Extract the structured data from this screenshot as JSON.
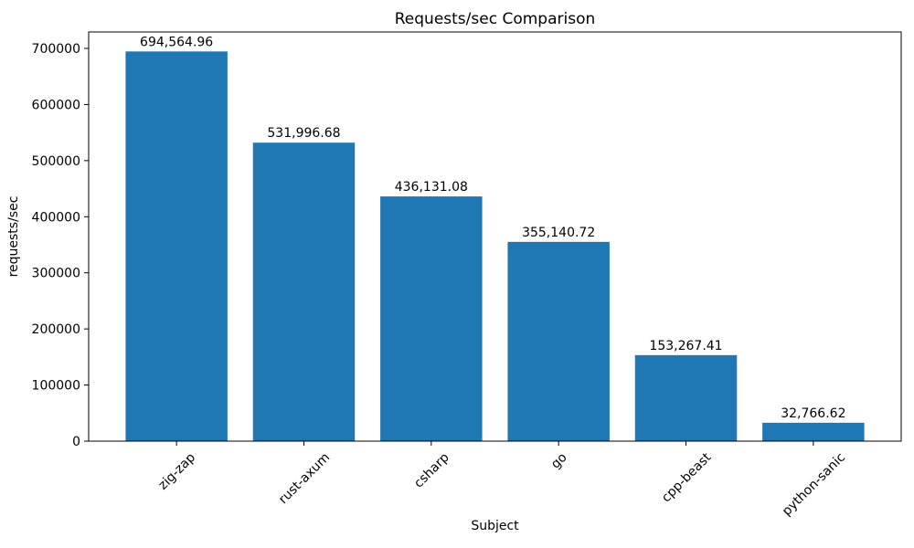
{
  "chart_data": {
    "type": "bar",
    "title": "Requests/sec Comparison",
    "xlabel": "Subject",
    "ylabel": "requests/sec",
    "categories": [
      "zig-zap",
      "rust-axum",
      "csharp",
      "go",
      "cpp-beast",
      "python-sanic"
    ],
    "values": [
      694564.96,
      531996.68,
      436131.08,
      355140.72,
      153267.41,
      32766.62
    ],
    "bar_value_labels": [
      "694,564.96",
      "531,996.68",
      "436,131.08",
      "355,140.72",
      "153,267.41",
      "32,766.62"
    ],
    "yticks": [
      0,
      100000,
      200000,
      300000,
      400000,
      500000,
      600000,
      700000
    ],
    "ytick_labels": [
      "0",
      "100000",
      "200000",
      "300000",
      "400000",
      "500000",
      "600000",
      "700000"
    ],
    "ylim": [
      0,
      729293
    ],
    "x_tick_rotation": 45,
    "bar_width_fraction": 0.8,
    "grid": false,
    "legend": null,
    "colors": {
      "bar": "#1f77b4",
      "text": "#000000",
      "axis": "#000000",
      "background": "#ffffff"
    }
  }
}
